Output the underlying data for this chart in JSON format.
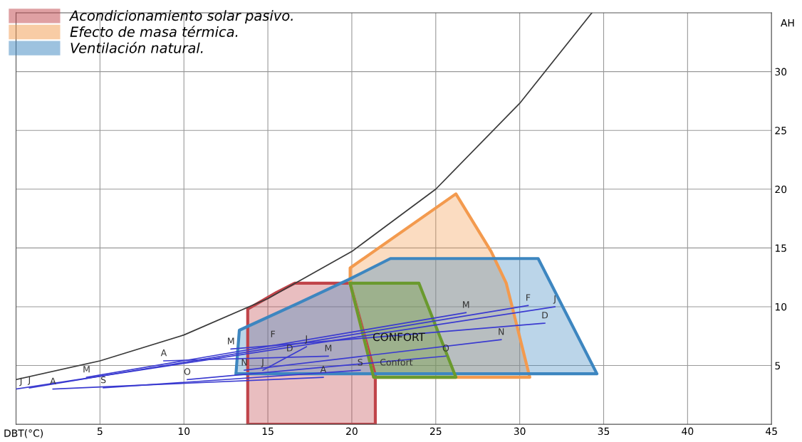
{
  "chart_data": {
    "type": "line",
    "xlabel": "DBT(°C)",
    "ylabel": "AH",
    "xlim": [
      0,
      45
    ],
    "ylim": [
      0,
      35
    ],
    "xticks": [
      5,
      10,
      15,
      20,
      25,
      30,
      35,
      40,
      45
    ],
    "yticks": [
      5,
      10,
      15,
      20,
      25,
      30
    ],
    "grid": true,
    "legend": "top left",
    "marker": "none",
    "line_style": "solid",
    "series": [
      {
        "color": "#3a3a3a",
        "x": [
          0,
          5,
          10,
          15,
          20,
          25,
          30,
          34.3
        ],
        "values": [
          3.8,
          5.4,
          7.6,
          10.7,
          14.7,
          20.0,
          27.3,
          35
        ]
      },
      {
        "type": "area",
        "name": "Acondicionamiento solar pasivo.",
        "color": "#c0444a",
        "x": [
          13.8,
          13.8,
          15.5,
          16.6,
          19.9,
          21.4,
          21.4,
          13.8
        ],
        "values": [
          0,
          9.8,
          11.2,
          12.0,
          12.0,
          4.2,
          0,
          0
        ]
      },
      {
        "type": "area",
        "name": "Efecto de masa térmica.",
        "color": "#f39a4e",
        "x": [
          19.9,
          19.9,
          26.2,
          28.3,
          29.2,
          30.6,
          21.3,
          19.9
        ],
        "values": [
          12.0,
          13.3,
          19.6,
          14.7,
          12.0,
          4.0,
          4.0,
          12.0
        ]
      },
      {
        "type": "area",
        "name": "Ventilación natural.",
        "color": "#3d86c0",
        "x": [
          13.1,
          13.3,
          16.8,
          19.8,
          22.3,
          31.1,
          34.6,
          13.1
        ],
        "values": [
          4.3,
          8.0,
          10.3,
          12.3,
          14.1,
          14.1,
          4.3,
          4.3
        ]
      },
      {
        "type": "area",
        "color": "#6a9a2e",
        "x": [
          19.9,
          24.0,
          26.2,
          21.3,
          19.9
        ],
        "values": [
          12.0,
          12.0,
          4.0,
          4.0,
          12.0
        ]
      },
      {
        "type": "line",
        "color": "#3a3ad0",
        "x": [
          0,
          32.1
        ],
        "values": [
          3.0,
          10.0
        ]
      },
      {
        "type": "line",
        "color": "#3a3ad0",
        "x": [
          0.8,
          30.5
        ],
        "values": [
          3.1,
          10.1
        ]
      },
      {
        "type": "line",
        "color": "#3a3ad0",
        "x": [
          4.2,
          26.8
        ],
        "values": [
          4.0,
          9.5
        ]
      },
      {
        "type": "line",
        "color": "#3a3ad0",
        "x": [
          2.2,
          18.3
        ],
        "values": [
          3.0,
          4.0
        ]
      },
      {
        "type": "line",
        "color": "#3a3ad0",
        "x": [
          5.2,
          20.5
        ],
        "values": [
          3.1,
          4.6
        ]
      },
      {
        "type": "line",
        "color": "#3a3ad0",
        "x": [
          10.2,
          25.6
        ],
        "values": [
          3.8,
          5.8
        ]
      },
      {
        "type": "line",
        "color": "#3a3ad0",
        "x": [
          12.8,
          31.5
        ],
        "values": [
          6.4,
          8.6
        ]
      },
      {
        "type": "line",
        "color": "#3a3ad0",
        "x": [
          13.6,
          28.9
        ],
        "values": [
          4.6,
          7.2
        ]
      },
      {
        "type": "line",
        "color": "#3a3ad0",
        "x": [
          8.8,
          18.6
        ],
        "values": [
          5.4,
          5.8
        ]
      },
      {
        "type": "line",
        "color": "#3a3ad0",
        "x": [
          14.7,
          17.3
        ],
        "values": [
          4.6,
          6.6
        ]
      }
    ],
    "annotations": [
      {
        "text": "CONFORT",
        "x": 22.8,
        "y": 7.35
      },
      {
        "text": "Confort",
        "x": 22.65,
        "y": 4.6
      },
      {
        "text": "J",
        "x": 0.3,
        "y": 3.0
      },
      {
        "text": "J",
        "x": 0.8,
        "y": 3.1
      },
      {
        "text": "A",
        "x": 2.2,
        "y": 3.0
      },
      {
        "text": "M",
        "x": 4.2,
        "y": 4.0
      },
      {
        "text": "S",
        "x": 5.2,
        "y": 3.1
      },
      {
        "text": "A",
        "x": 8.8,
        "y": 5.4
      },
      {
        "text": "O",
        "x": 10.2,
        "y": 3.8
      },
      {
        "text": "M",
        "x": 12.8,
        "y": 6.4
      },
      {
        "text": "N",
        "x": 13.6,
        "y": 4.6
      },
      {
        "text": "J",
        "x": 14.7,
        "y": 4.6
      },
      {
        "text": "F",
        "x": 15.3,
        "y": 7.0
      },
      {
        "text": "D",
        "x": 16.3,
        "y": 5.8
      },
      {
        "text": "J",
        "x": 17.3,
        "y": 6.6
      },
      {
        "text": "A",
        "x": 18.3,
        "y": 4.0
      },
      {
        "text": "M",
        "x": 18.6,
        "y": 5.8
      },
      {
        "text": "S",
        "x": 20.5,
        "y": 4.6
      },
      {
        "text": "O",
        "x": 25.6,
        "y": 5.8
      },
      {
        "text": "M",
        "x": 26.8,
        "y": 9.5
      },
      {
        "text": "N",
        "x": 28.9,
        "y": 7.2
      },
      {
        "text": "F",
        "x": 30.5,
        "y": 10.1
      },
      {
        "text": "D",
        "x": 31.5,
        "y": 8.6
      },
      {
        "text": "J",
        "x": 32.1,
        "y": 10.0
      }
    ]
  }
}
